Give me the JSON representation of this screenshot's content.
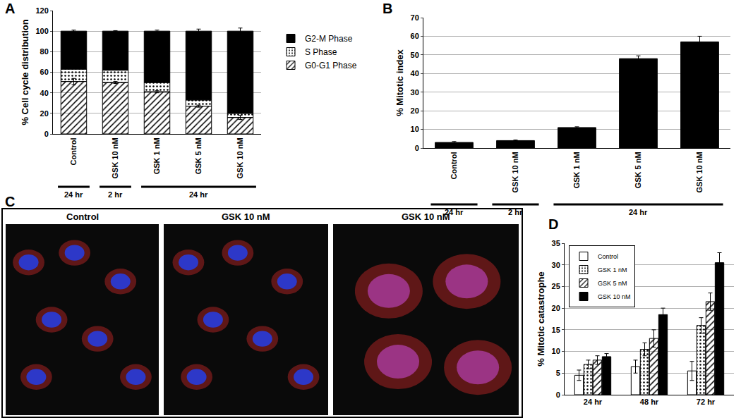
{
  "chart_data": [
    {
      "type": "bar",
      "panel": "A",
      "stacked": true,
      "categories": [
        "Control",
        "GSK 10 nM",
        "GSK 1 nM",
        "GSK 5 nM",
        "GSK 10 nM"
      ],
      "y_label": "% Cell cycle distribution",
      "ylim": [
        0,
        120
      ],
      "yticks": [
        0,
        20,
        40,
        60,
        80,
        100,
        120
      ],
      "grid": true,
      "legend": "right",
      "series": [
        {
          "name": "G0-G1 Phase",
          "color": "#ffffff",
          "marker": "hatch",
          "values": [
            51,
            50,
            41,
            27,
            16
          ],
          "errors": [
            3,
            1,
            1,
            1,
            2
          ]
        },
        {
          "name": "S Phase",
          "color": "#ffffff",
          "marker": "dots",
          "values": [
            12,
            12,
            9,
            6,
            4
          ]
        },
        {
          "name": "G2-M Phase",
          "color": "#000000",
          "marker": "solid",
          "values": [
            37,
            38,
            50,
            67,
            80
          ],
          "errors": [
            1,
            0.5,
            1,
            2,
            3
          ]
        }
      ],
      "time_groups": [
        {
          "label": "24 hr",
          "span": 1
        },
        {
          "label": "2 hr",
          "span": 1
        },
        {
          "label": "24 hr",
          "span": 3
        }
      ]
    },
    {
      "type": "bar",
      "panel": "B",
      "categories": [
        "Control",
        "GSK 10 nM",
        "GSK 1 nM",
        "GSK 5 nM",
        "GSK 10 nM"
      ],
      "y_label": "% Mitotic index",
      "ylim": [
        0,
        70
      ],
      "yticks": [
        0,
        10,
        20,
        30,
        40,
        50,
        60,
        70
      ],
      "grid": true,
      "values": [
        3,
        4,
        11,
        48,
        57
      ],
      "errors": [
        0.5,
        0.3,
        0.4,
        1.5,
        3
      ],
      "color": "#000000",
      "time_groups": [
        {
          "label": "24 hr",
          "span": 1
        },
        {
          "label": "2 hr",
          "span": 1
        },
        {
          "label": "24 hr",
          "span": 3
        }
      ]
    },
    {
      "type": "bar",
      "panel": "D",
      "categories": [
        "24 hr",
        "48 hr",
        "72 hr"
      ],
      "y_label": "% Mitotic catastrophe",
      "ylim": [
        0,
        35
      ],
      "yticks": [
        0,
        5,
        10,
        15,
        20,
        25,
        30,
        35
      ],
      "grid": true,
      "legend": "upper left",
      "series": [
        {
          "name": "Control",
          "color": "#ffffff",
          "marker": "solid",
          "values": [
            4.5,
            6.5,
            5.5
          ],
          "errors": [
            1.2,
            1.5,
            2.2
          ]
        },
        {
          "name": "GSK 1 nM",
          "color": "#ffffff",
          "marker": "dots",
          "values": [
            7,
            10.5,
            16
          ],
          "errors": [
            1,
            1.5,
            1.8
          ]
        },
        {
          "name": "GSK 5 nM",
          "color": "#ffffff",
          "marker": "hatch",
          "values": [
            8,
            13,
            21.5
          ],
          "errors": [
            1,
            2,
            2
          ]
        },
        {
          "name": "GSK 10 nM",
          "color": "#000000",
          "marker": "solid",
          "values": [
            8.8,
            18.5,
            30.5
          ],
          "errors": [
            0.7,
            1.5,
            2.3
          ]
        }
      ]
    }
  ],
  "micrographs": {
    "panel": "C",
    "titles": [
      "Control",
      "GSK 10 nM",
      "GSK 10 nM"
    ]
  }
}
